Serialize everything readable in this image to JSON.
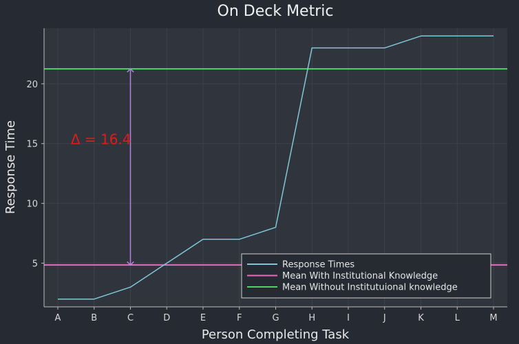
{
  "chart_data": {
    "type": "line",
    "title": "On Deck Metric",
    "xlabel": "Person Completing Task",
    "ylabel": "Response Time",
    "categories": [
      "A",
      "B",
      "C",
      "D",
      "E",
      "F",
      "G",
      "H",
      "I",
      "J",
      "K",
      "L",
      "M"
    ],
    "series": [
      {
        "name": "Response Times",
        "values": [
          2,
          2,
          3,
          5,
          7,
          7,
          8,
          23,
          23,
          23,
          24,
          24,
          24
        ],
        "color": "#7ec8d8"
      }
    ],
    "hlines": [
      {
        "name": "Mean With Institutional Knowledge",
        "value": 4.85,
        "color": "#e36fb8"
      },
      {
        "name": "Mean Without Institutuional knowledge",
        "value": 21.25,
        "color": "#4fd36b"
      }
    ],
    "annotation": {
      "text": "Δ = 16.4",
      "x": "C",
      "y_from": 4.85,
      "y_to": 21.25,
      "arrow_color": "#b483e0"
    },
    "yticks": [
      5,
      10,
      15,
      20
    ],
    "ylim": [
      1.35,
      24.65
    ],
    "grid": true,
    "legend_position": "bottom-right"
  }
}
